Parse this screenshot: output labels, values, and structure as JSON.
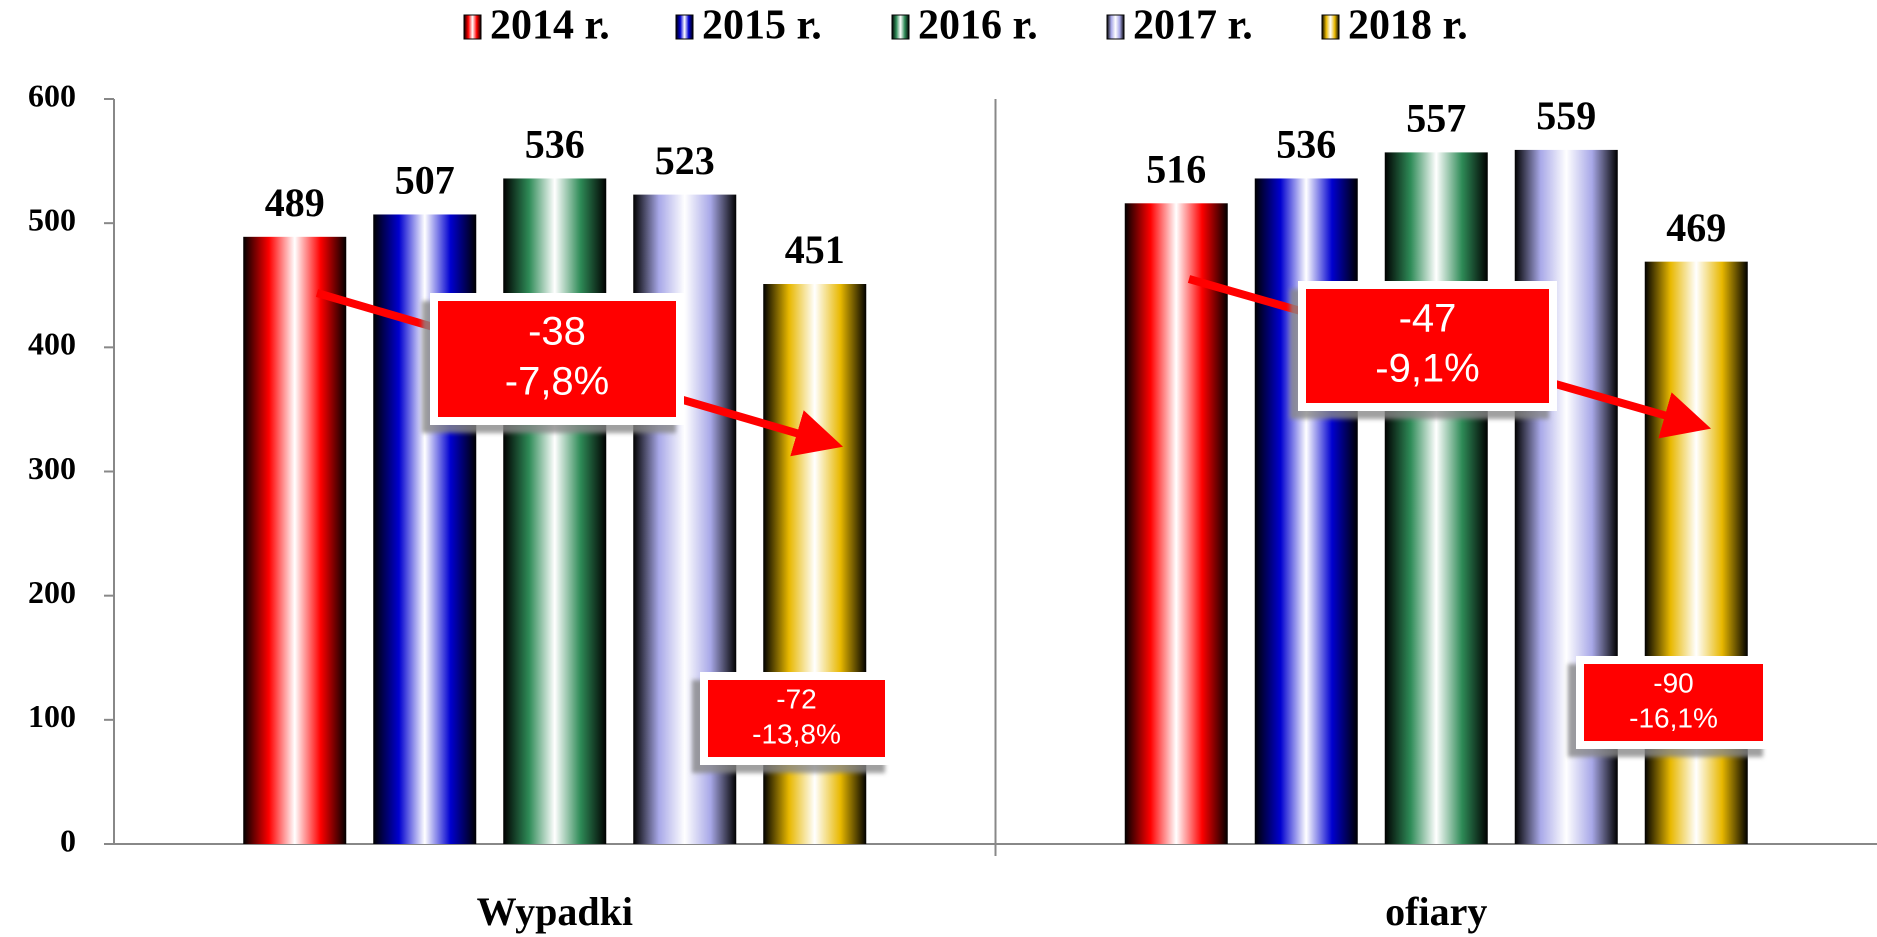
{
  "chart_data": {
    "type": "bar",
    "categories": [
      "Wypadki",
      "ofiary"
    ],
    "series": [
      {
        "name": "2014 r.",
        "color": "#ff0000",
        "values": [
          489,
          516
        ]
      },
      {
        "name": "2015 r.",
        "color": "#0000d0",
        "values": [
          507,
          536
        ]
      },
      {
        "name": "2016 r.",
        "color": "#2e8b57",
        "values": [
          536,
          557
        ]
      },
      {
        "name": "2017 r.",
        "color": "#a8a8e8",
        "values": [
          523,
          559
        ]
      },
      {
        "name": "2018 r.",
        "color": "#e8b800",
        "values": [
          451,
          469
        ]
      }
    ],
    "ylim": [
      0,
      600
    ],
    "yticks": [
      0,
      100,
      200,
      300,
      400,
      500,
      600
    ],
    "legend": "top",
    "annotations": [
      {
        "lines": [
          "-38",
          "-7,8%"
        ]
      },
      {
        "lines": [
          "-72",
          "-13,8%"
        ]
      },
      {
        "lines": [
          "-47",
          "-9,1%"
        ]
      },
      {
        "lines": [
          "-90",
          "-16,1%"
        ]
      }
    ]
  }
}
